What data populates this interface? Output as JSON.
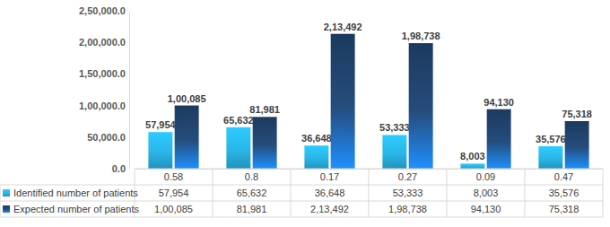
{
  "chart_data": {
    "type": "bar",
    "categories": [
      "0.58",
      "0.8",
      "0.17",
      "0.27",
      "0.09",
      "0.47"
    ],
    "series": [
      {
        "name": "Identified number of patients",
        "color": "#29b6e8",
        "values": [
          57954,
          65632,
          36648,
          53333,
          8003,
          35576
        ],
        "value_labels": [
          "57,954",
          "65,632",
          "36,648",
          "53,333",
          "8,003",
          "35,576"
        ]
      },
      {
        "name": "Expected number of patients",
        "color": "#1c3a5e",
        "values": [
          100085,
          81981,
          213492,
          198738,
          94130,
          75318
        ],
        "value_labels": [
          "1,00,085",
          "81,981",
          "2,13,492",
          "1,98,738",
          "94,130",
          "75,318"
        ]
      }
    ],
    "ylim": [
      0,
      250000
    ],
    "yticks": [
      {
        "value": 0,
        "label": "0.0"
      },
      {
        "value": 50000,
        "label": "50,000.0"
      },
      {
        "value": 100000,
        "label": "1,00,000.0"
      },
      {
        "value": 150000,
        "label": "1,50,000.0"
      },
      {
        "value": 200000,
        "label": "2,00,000.0"
      },
      {
        "value": 250000,
        "label": "2,50,000.0"
      }
    ],
    "data_labels": true,
    "legend": "bottom"
  }
}
